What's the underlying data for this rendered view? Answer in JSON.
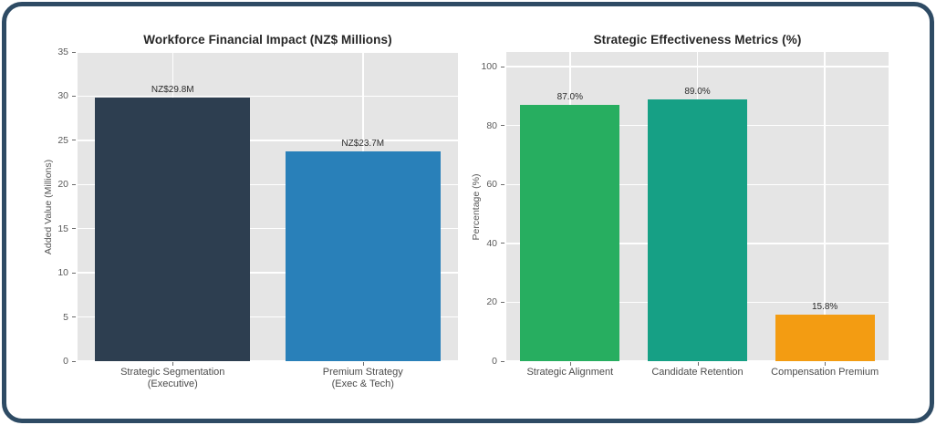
{
  "card": {
    "border_color": "#2e4b64",
    "background": "#ffffff"
  },
  "chart_data": [
    {
      "type": "bar",
      "title": "Workforce Financial Impact (NZ$ Millions)",
      "xlabel": "",
      "ylabel": "Added Value (Millions)",
      "categories": [
        "Strategic Segmentation\n(Executive)",
        "Premium Strategy\n(Exec & Tech)"
      ],
      "values": [
        29.8,
        23.7
      ],
      "bar_labels": [
        "NZ$29.8M",
        "NZ$23.7M"
      ],
      "bar_colors": [
        "#2d3e50",
        "#2980b9"
      ],
      "ylim": [
        0,
        35
      ],
      "yticks": [
        0,
        5,
        10,
        15,
        20,
        25,
        30,
        35
      ],
      "grid": true,
      "grid_color": "#ffffff",
      "plot_bg": "#e5e5e5",
      "legend": "none"
    },
    {
      "type": "bar",
      "title": "Strategic Effectiveness Metrics (%)",
      "xlabel": "",
      "ylabel": "Percentage (%)",
      "categories": [
        "Strategic Alignment",
        "Candidate Retention",
        "Compensation Premium"
      ],
      "values": [
        87.0,
        89.0,
        15.8
      ],
      "bar_labels": [
        "87.0%",
        "89.0%",
        "15.8%"
      ],
      "bar_colors": [
        "#27ae60",
        "#16a085",
        "#f39c12"
      ],
      "ylim": [
        0,
        105
      ],
      "yticks": [
        0,
        20,
        40,
        60,
        80,
        100
      ],
      "grid": true,
      "grid_color": "#ffffff",
      "plot_bg": "#e5e5e5",
      "legend": "none"
    }
  ]
}
